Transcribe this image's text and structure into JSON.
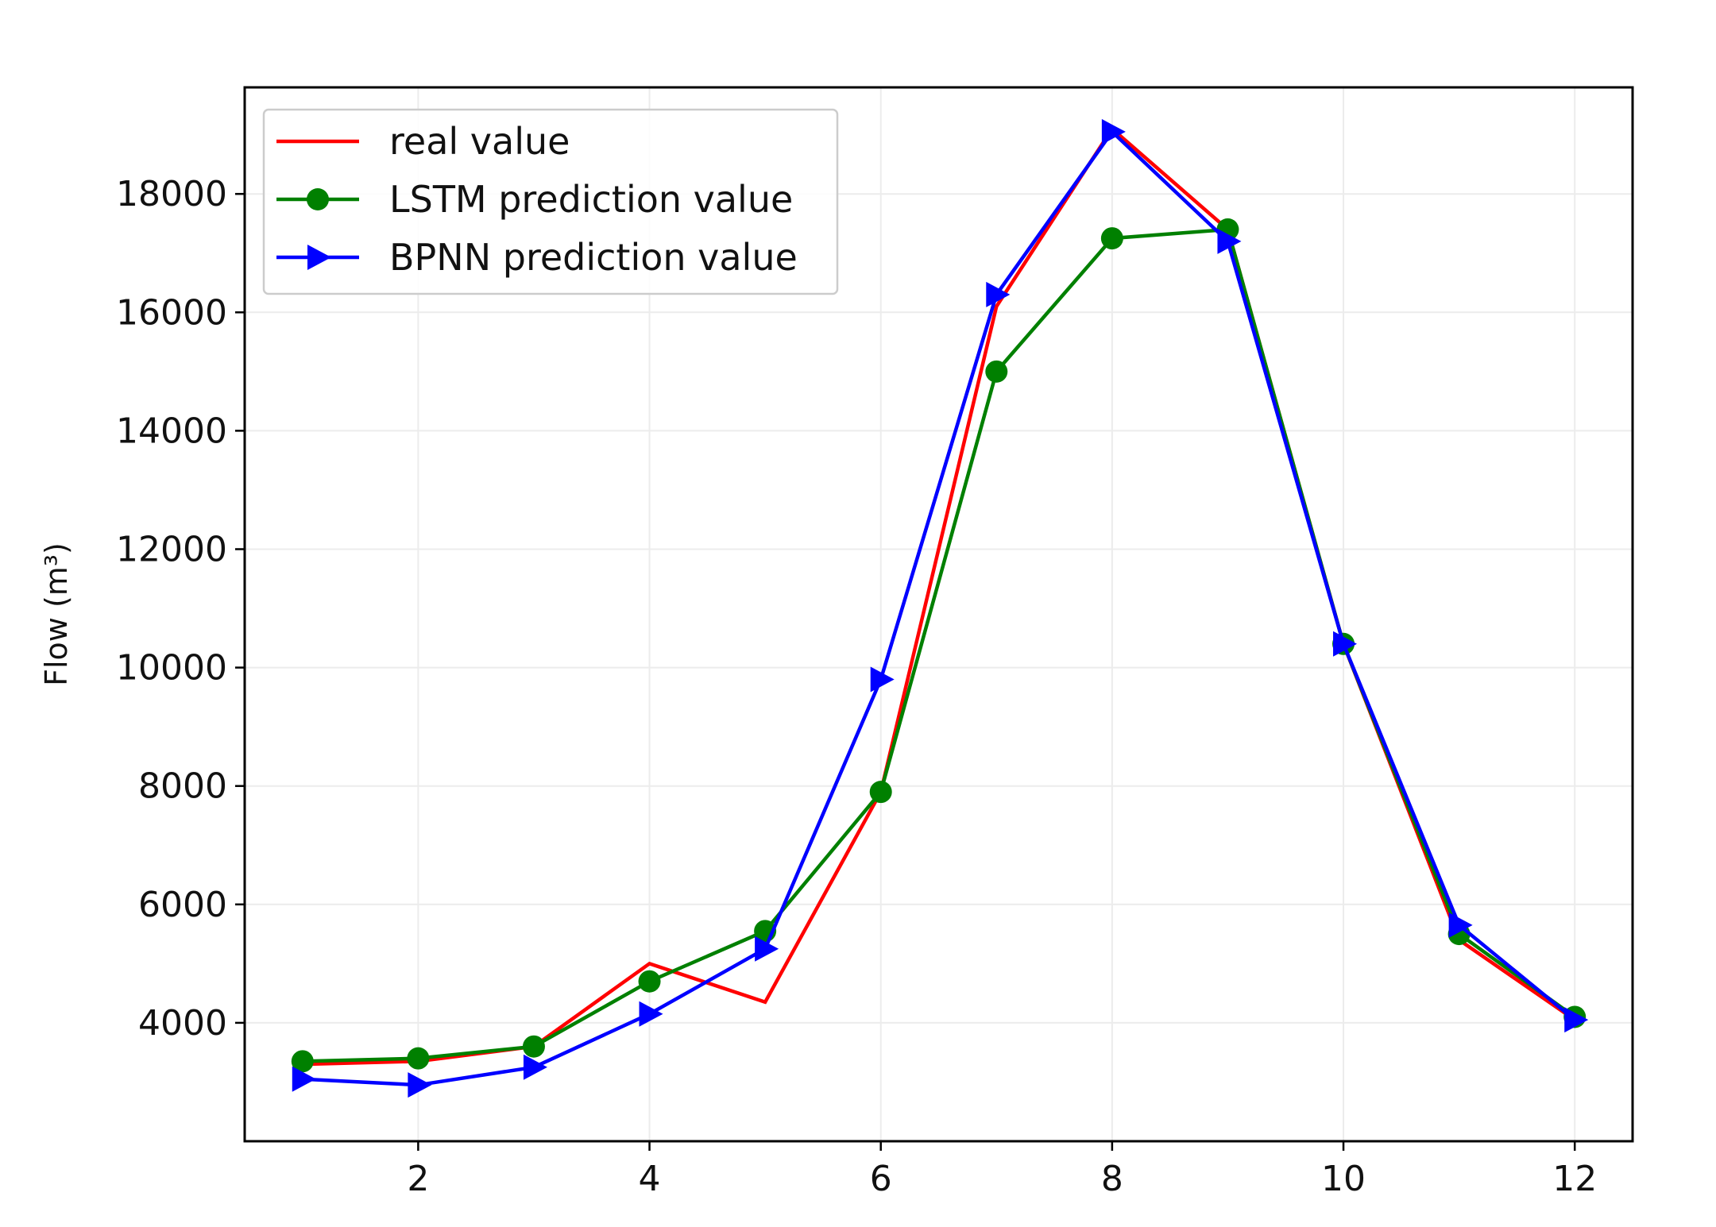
{
  "chart_data": {
    "type": "line",
    "title": "",
    "xlabel": "",
    "ylabel": "Flow (m³)",
    "x": [
      1,
      2,
      3,
      4,
      5,
      6,
      7,
      8,
      9,
      10,
      11,
      12
    ],
    "xlim": [
      0.5,
      12.5
    ],
    "ylim": [
      2000,
      19800
    ],
    "xticks": [
      2,
      4,
      6,
      8,
      10,
      12
    ],
    "xtick_labels": [
      "2",
      "4",
      "6",
      "8",
      "10",
      "12"
    ],
    "yticks": [
      4000,
      6000,
      8000,
      10000,
      12000,
      14000,
      16000,
      18000
    ],
    "ytick_labels": [
      "4000",
      "6000",
      "8000",
      "10000",
      "12000",
      "14000",
      "16000",
      "18000"
    ],
    "grid": true,
    "legend_position": "top-left",
    "series": [
      {
        "name": "real value",
        "color": "#ff0000",
        "marker": "none",
        "values": [
          3300,
          3350,
          3600,
          5000,
          4350,
          7900,
          16100,
          19100,
          17400,
          10400,
          5400,
          4050
        ]
      },
      {
        "name": "LSTM prediction value",
        "color": "#008000",
        "marker": "circle",
        "values": [
          3350,
          3400,
          3600,
          4700,
          5550,
          7900,
          15000,
          17250,
          17400,
          10400,
          5500,
          4100
        ]
      },
      {
        "name": "BPNN prediction value",
        "color": "#0000ff",
        "marker": "triangle-right",
        "values": [
          3050,
          2950,
          3250,
          4150,
          5250,
          9800,
          16300,
          19050,
          17200,
          10400,
          5650,
          4050
        ]
      }
    ]
  }
}
